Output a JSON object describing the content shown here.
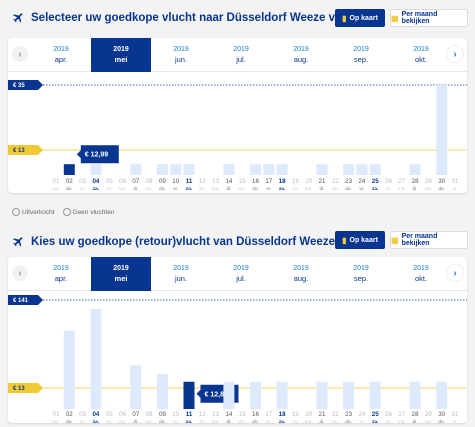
{
  "colors": {
    "brand": "#073590",
    "accent": "#f1c933",
    "bar": "#ddeafb",
    "bar_selected": "#073590",
    "link": "#1b7bd6"
  },
  "outbound": {
    "title": "Selecteer uw goedkope vlucht naar Düsseldorf Weeze van Fez",
    "btn_map": "Op kaart",
    "btn_month": "Per maand bekijken",
    "months": [
      {
        "year": "2019",
        "month": "apr."
      },
      {
        "year": "2019",
        "month": "mei",
        "selected": true
      },
      {
        "year": "2019",
        "month": "jun."
      },
      {
        "year": "2019",
        "month": "jul."
      },
      {
        "year": "2019",
        "month": "aug."
      },
      {
        "year": "2019",
        "month": "sep."
      },
      {
        "year": "2019",
        "month": "okt."
      }
    ],
    "max_price_label": "€ 35",
    "min_price_label": "€ 13",
    "selected_price": "€ 12,99",
    "days": [
      {
        "d": "01",
        "w": "wo.",
        "h": 0
      },
      {
        "d": "02",
        "w": "do.",
        "h": 0.12,
        "sel": true
      },
      {
        "d": "03",
        "w": "vr.",
        "h": 0
      },
      {
        "d": "04",
        "w": "za.",
        "h": 0.12,
        "bold": true
      },
      {
        "d": "05",
        "w": "zo.",
        "h": 0
      },
      {
        "d": "06",
        "w": "ma.",
        "h": 0
      },
      {
        "d": "07",
        "w": "di.",
        "h": 0.12
      },
      {
        "d": "08",
        "w": "wo.",
        "h": 0
      },
      {
        "d": "09",
        "w": "do.",
        "h": 0.12
      },
      {
        "d": "10",
        "w": "vr.",
        "h": 0.12
      },
      {
        "d": "11",
        "w": "za.",
        "h": 0.12,
        "bold": true
      },
      {
        "d": "12",
        "w": "zo.",
        "h": 0
      },
      {
        "d": "13",
        "w": "ma.",
        "h": 0
      },
      {
        "d": "14",
        "w": "di.",
        "h": 0.12
      },
      {
        "d": "15",
        "w": "wo.",
        "h": 0
      },
      {
        "d": "16",
        "w": "do.",
        "h": 0.12
      },
      {
        "d": "17",
        "w": "vr.",
        "h": 0.12
      },
      {
        "d": "18",
        "w": "za.",
        "h": 0.12,
        "bold": true
      },
      {
        "d": "19",
        "w": "zo.",
        "h": 0
      },
      {
        "d": "20",
        "w": "ma.",
        "h": 0
      },
      {
        "d": "21",
        "w": "di.",
        "h": 0.12
      },
      {
        "d": "22",
        "w": "wo.",
        "h": 0
      },
      {
        "d": "23",
        "w": "do.",
        "h": 0.12
      },
      {
        "d": "24",
        "w": "vr.",
        "h": 0.12
      },
      {
        "d": "25",
        "w": "za.",
        "h": 0.12,
        "bold": true
      },
      {
        "d": "26",
        "w": "zo.",
        "h": 0
      },
      {
        "d": "27",
        "w": "ma.",
        "h": 0
      },
      {
        "d": "28",
        "w": "di.",
        "h": 0.12
      },
      {
        "d": "29",
        "w": "wo.",
        "h": 0
      },
      {
        "d": "30",
        "w": "do.",
        "h": 1.0
      },
      {
        "d": "31",
        "w": "vr.",
        "h": 0
      }
    ]
  },
  "legend": {
    "sold_out": "Uitverkocht",
    "no_flights": "Geen vluchten"
  },
  "return": {
    "title": "Kies uw goedkope (retour)vlucht van Düsseldorf Weeze naar Fez",
    "btn_map": "Op kaart",
    "btn_month": "Per maand bekijken",
    "months": [
      {
        "year": "2019",
        "month": "apr."
      },
      {
        "year": "2019",
        "month": "mei",
        "selected": true
      },
      {
        "year": "2019",
        "month": "jun."
      },
      {
        "year": "2019",
        "month": "jul."
      },
      {
        "year": "2019",
        "month": "aug."
      },
      {
        "year": "2019",
        "month": "sep."
      },
      {
        "year": "2019",
        "month": "okt."
      }
    ],
    "max_price_label": "€ 141",
    "min_price_label": "€ 13",
    "selected_price": "€ 12,82",
    "days": [
      {
        "d": "01",
        "w": "wo.",
        "h": 0
      },
      {
        "d": "02",
        "w": "do.",
        "h": 0.72
      },
      {
        "d": "03",
        "w": "vr.",
        "h": 0
      },
      {
        "d": "04",
        "w": "za.",
        "h": 0.92,
        "bold": true
      },
      {
        "d": "05",
        "w": "zo.",
        "h": 0
      },
      {
        "d": "06",
        "w": "ma.",
        "h": 0
      },
      {
        "d": "07",
        "w": "di.",
        "h": 0.4
      },
      {
        "d": "08",
        "w": "wo.",
        "h": 0
      },
      {
        "d": "09",
        "w": "do.",
        "h": 0.32
      },
      {
        "d": "10",
        "w": "vr.",
        "h": 0
      },
      {
        "d": "11",
        "w": "za.",
        "h": 0.25,
        "bold": true,
        "sel": true
      },
      {
        "d": "12",
        "w": "zo.",
        "h": 0
      },
      {
        "d": "13",
        "w": "ma.",
        "h": 0
      },
      {
        "d": "14",
        "w": "di.",
        "h": 0.25
      },
      {
        "d": "15",
        "w": "wo.",
        "h": 0
      },
      {
        "d": "16",
        "w": "do.",
        "h": 0.25
      },
      {
        "d": "17",
        "w": "vr.",
        "h": 0
      },
      {
        "d": "18",
        "w": "za.",
        "h": 0.25,
        "bold": true
      },
      {
        "d": "19",
        "w": "zo.",
        "h": 0
      },
      {
        "d": "20",
        "w": "ma.",
        "h": 0
      },
      {
        "d": "21",
        "w": "di.",
        "h": 0.25
      },
      {
        "d": "22",
        "w": "wo.",
        "h": 0
      },
      {
        "d": "23",
        "w": "do.",
        "h": 0.25
      },
      {
        "d": "24",
        "w": "vr.",
        "h": 0
      },
      {
        "d": "25",
        "w": "za.",
        "h": 0.25,
        "bold": true
      },
      {
        "d": "26",
        "w": "zo.",
        "h": 0
      },
      {
        "d": "27",
        "w": "ma.",
        "h": 0
      },
      {
        "d": "28",
        "w": "di.",
        "h": 0.25
      },
      {
        "d": "29",
        "w": "wo.",
        "h": 0
      },
      {
        "d": "30",
        "w": "do.",
        "h": 0.25
      },
      {
        "d": "31",
        "w": "vr.",
        "h": 0
      }
    ]
  }
}
